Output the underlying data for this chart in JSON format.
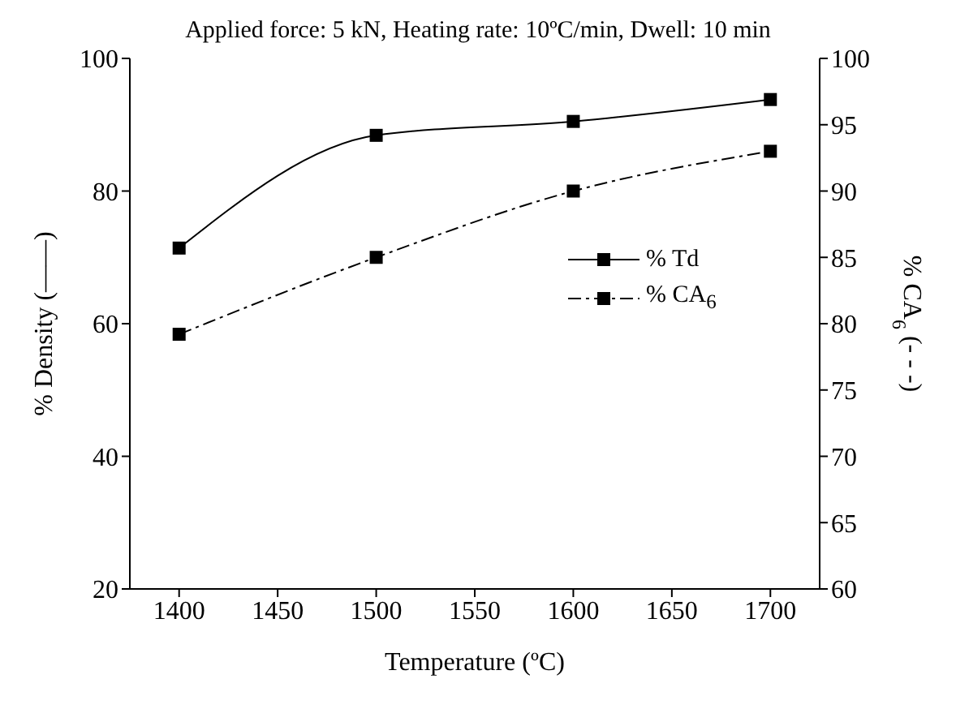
{
  "chart_data": {
    "type": "line",
    "title": "Applied force: 5 kN, Heating rate: 10ºC/min, Dwell: 10 min",
    "xlabel": "Temperature (ºC)",
    "ylabel": "% Density (——)",
    "y2label": "% CA$_{6}$ (- - -)",
    "x": [
      1400,
      1500,
      1600,
      1700
    ],
    "series": [
      {
        "name": "% Td",
        "color": "#000000",
        "values": [
          71.4,
          88.4,
          90.5,
          93.8
        ],
        "line_style": "solid"
      },
      {
        "name": "% CA$_{6}$",
        "color": "#000000",
        "values": [
          79.2,
          85.0,
          90.0,
          93.0
        ],
        "axis": "y2",
        "line_style": "dashed"
      }
    ],
    "xlim": [
      1375,
      1725
    ],
    "xticks": [
      1400,
      1450,
      1500,
      1550,
      1600,
      1650,
      1700
    ],
    "ylim": [
      20,
      100
    ],
    "yticks": [
      20,
      40,
      60,
      80,
      100
    ],
    "y2lim": [
      60,
      100
    ],
    "y2ticks": [
      60,
      65,
      70,
      75,
      80,
      85,
      90,
      95,
      100
    ],
    "marker": "square",
    "legend": "right",
    "grid": false
  }
}
